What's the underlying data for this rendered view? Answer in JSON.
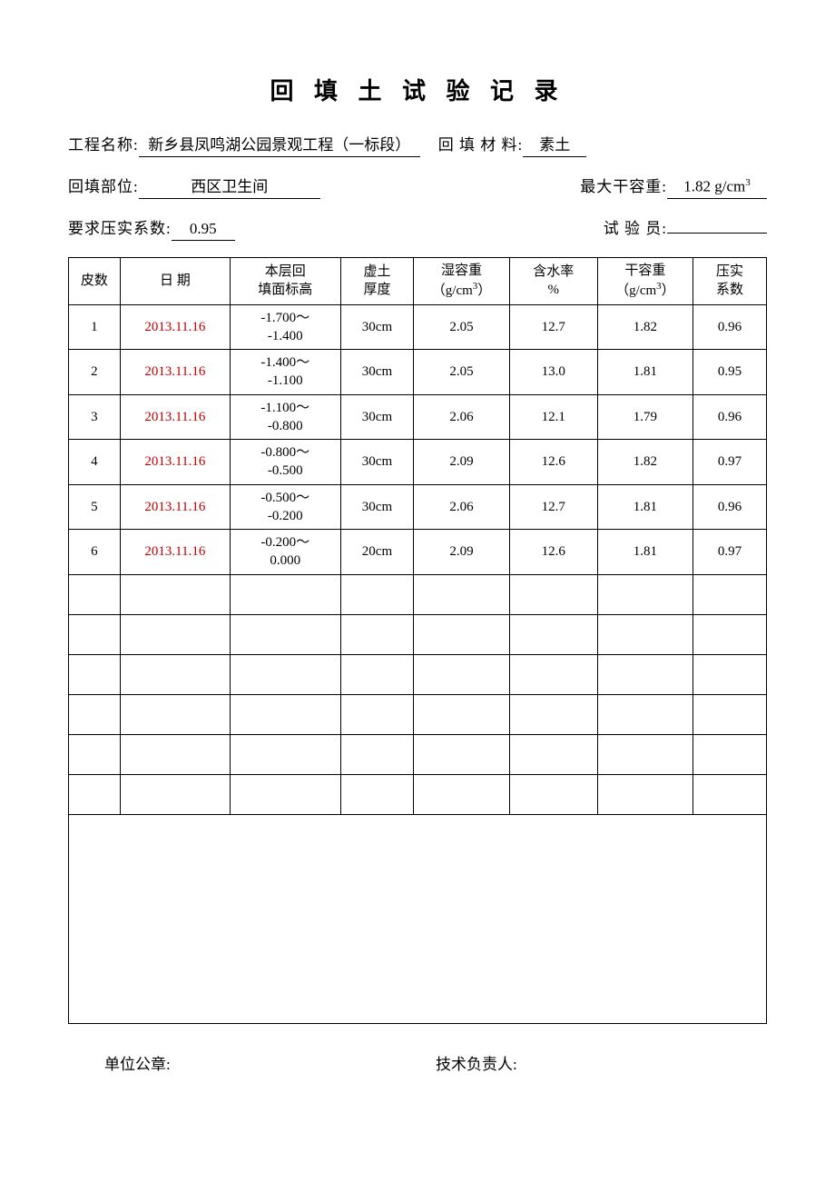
{
  "title": "回 填 土 试 验 记 录",
  "meta": {
    "project_label": "工程名称:",
    "project_name": "新乡县凤鸣湖公园景观工程（一标段）",
    "fill_material_label": "回 填 材 料:",
    "fill_material": "素土",
    "fill_location_label": "回填部位:",
    "fill_location": "西区卫生间",
    "max_dry_label": "最大干容重:",
    "max_dry_value": "1.82  g/cm",
    "max_dry_sup": "3",
    "compaction_label": "要求压实系数:",
    "compaction_value": "0.95",
    "tester_label": "试   验   员:",
    "tester_value": ""
  },
  "table": {
    "columns": {
      "c1": "皮数",
      "c2": "日   期",
      "c3": "本层回\n填面标高",
      "c4": "虚土\n厚度",
      "c5_line1": "湿容重",
      "c5_line2": "（g/cm",
      "c5_sup": "3",
      "c5_close": "）",
      "c6": "含水率\n%",
      "c7_line1": "干容重",
      "c7_line2": "（g/cm",
      "c7_sup": "3",
      "c7_close": "）",
      "c8": "压实\n系数"
    },
    "col_widths": [
      "7%",
      "15%",
      "15%",
      "10%",
      "13%",
      "12%",
      "13%",
      "10%"
    ],
    "rows": [
      {
        "n": "1",
        "date": "2013.11.16",
        "elev": "-1.700～\n-1.400",
        "thick": "30cm",
        "wet": "2.05",
        "water": "12.7",
        "dry": "1.82",
        "comp": "0.96"
      },
      {
        "n": "2",
        "date": "2013.11.16",
        "elev": "-1.400～\n-1.100",
        "thick": "30cm",
        "wet": "2.05",
        "water": "13.0",
        "dry": "1.81",
        "comp": "0.95"
      },
      {
        "n": "3",
        "date": "2013.11.16",
        "elev": "-1.100～\n-0.800",
        "thick": "30cm",
        "wet": "2.06",
        "water": "12.1",
        "dry": "1.79",
        "comp": "0.96"
      },
      {
        "n": "4",
        "date": "2013.11.16",
        "elev": "-0.800～\n-0.500",
        "thick": "30cm",
        "wet": "2.09",
        "water": "12.6",
        "dry": "1.82",
        "comp": "0.97"
      },
      {
        "n": "5",
        "date": "2013.11.16",
        "elev": "-0.500～\n-0.200",
        "thick": "30cm",
        "wet": "2.06",
        "water": "12.7",
        "dry": "1.81",
        "comp": "0.96"
      },
      {
        "n": "6",
        "date": "2013.11.16",
        "elev": "-0.200～\n0.000",
        "thick": "20cm",
        "wet": "2.09",
        "water": "12.6",
        "dry": "1.81",
        "comp": "0.97"
      }
    ],
    "empty_rows": 6
  },
  "footer": {
    "stamp": "单位公章:",
    "tech": "技术负责人:"
  }
}
